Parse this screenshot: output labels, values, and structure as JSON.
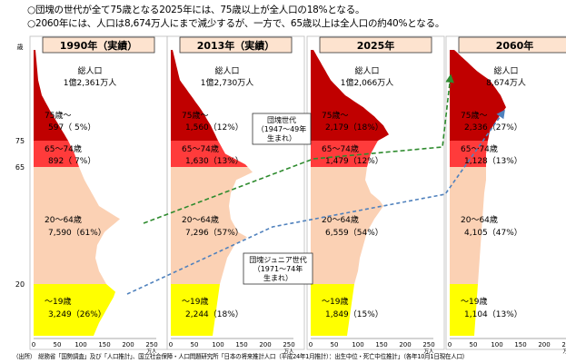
{
  "header": {
    "line1": "○団塊の世代が全て75歳となる2025年には、75歳以上が全人口の18%となる。",
    "line2": "○2060年には、人口は8,674万人にまで減少するが、一方で、65歳以上は全人口の約40%となる。"
  },
  "source_note": "（出所）　総務省「国勢調査」及び「人口推計」、国立社会保障・人口問題研究所「日本の将来推計人口（平成24年1月推計）：出生中位・死亡中位推計」（各年10月1日現在人口）",
  "colors": {
    "age75plus": "#c00000",
    "age65_74": "#ff3b3b",
    "age20_64": "#fbd1b4",
    "under19": "#ffff00",
    "title_bg": "#fde3cf",
    "dantai_arrow": "#2e8b2e",
    "junior_arrow": "#4f81bd"
  },
  "chart_data": {
    "type": "population-pyramid",
    "y_axis_label": "歳",
    "y_ticks": [
      "75",
      "65",
      "20"
    ],
    "x_ticks": [
      "0",
      "50",
      "100",
      "150",
      "200",
      "250"
    ],
    "x_unit": "万人",
    "panels": [
      {
        "title": "1990年（実績）",
        "total_label": "総人口",
        "total_value": "1億2,361万人",
        "groups": [
          {
            "age": "75歳～",
            "value": "597（ 5%）"
          },
          {
            "age": "65～74歳",
            "value": "892（ 7%）"
          },
          {
            "age": "20～64歳",
            "value": "7,590（61%）"
          },
          {
            "age": "～19歳",
            "value": "3,249（26%）"
          }
        ]
      },
      {
        "title": "2013年（実績）",
        "total_label": "総人口",
        "total_value": "1億2,730万人",
        "groups": [
          {
            "age": "75歳～",
            "value": "1,560（12%）"
          },
          {
            "age": "65～74歳",
            "value": "1,630（13%）"
          },
          {
            "age": "20～64歳",
            "value": "7,296（57%）"
          },
          {
            "age": "～19歳",
            "value": "2,244（18%）"
          }
        ]
      },
      {
        "title": "2025年",
        "total_label": "総人口",
        "total_value": "1億2,066万人",
        "groups": [
          {
            "age": "75歳～",
            "value": "2,179（18%）"
          },
          {
            "age": "65～74歳",
            "value": "1,479（12%）"
          },
          {
            "age": "20～64歳",
            "value": "6,559（54%）"
          },
          {
            "age": "～19歳",
            "value": "1,849（15%）"
          }
        ]
      },
      {
        "title": "2060年",
        "total_label": "総人口",
        "total_value": "8,674万人",
        "groups": [
          {
            "age": "75歳～",
            "value": "2,336（27%）"
          },
          {
            "age": "65～74歳",
            "value": "1,128（13%）"
          },
          {
            "age": "20～64歳",
            "value": "4,105（47%）"
          },
          {
            "age": "～19歳",
            "value": "1,104（13%）"
          }
        ]
      }
    ],
    "annotations": [
      {
        "label": "団塊世代\n（1947～49年\n生まれ）"
      },
      {
        "label": "団塊ジュニア世代\n（1971～74年\n生まれ）"
      }
    ]
  }
}
